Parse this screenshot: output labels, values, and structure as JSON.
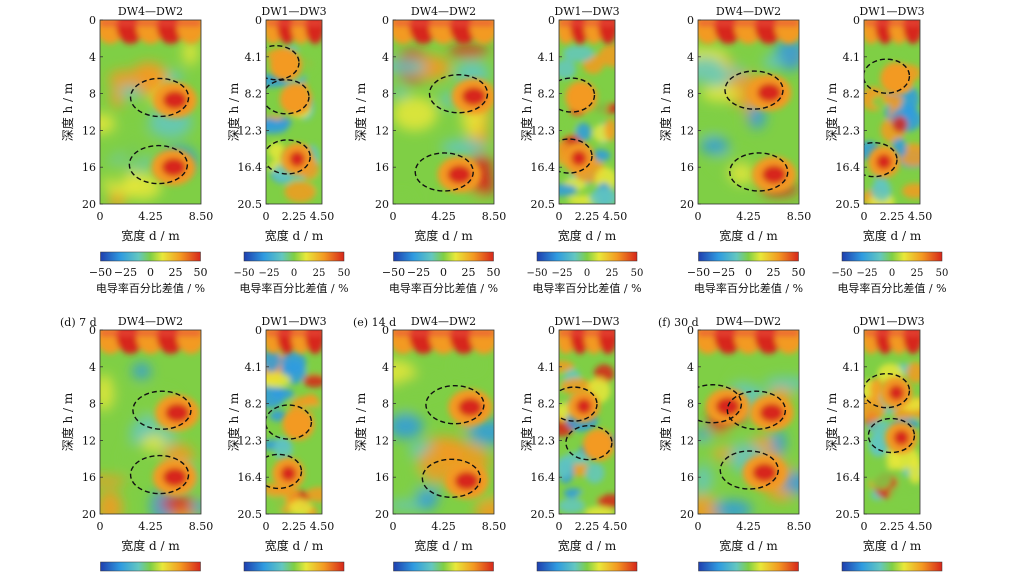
{
  "chart_data": {
    "type": "heatmap",
    "columns": [
      {
        "title": "DW4—DW2",
        "yticks": [
          "0",
          "4",
          "8",
          "12",
          "16",
          "20"
        ],
        "ylim": [
          0,
          20
        ],
        "xticks": [
          "0",
          "4.25",
          "8.50"
        ],
        "xlim": [
          0,
          8.5
        ],
        "cbar_ticks": [
          "−50",
          "−25",
          "0",
          "25",
          "50"
        ]
      },
      {
        "title": "DW1—DW3",
        "yticks": [
          "0",
          "4.1",
          "8.2",
          "12.3",
          "16.4",
          "20.5"
        ],
        "ylim": [
          0,
          20.5
        ],
        "xticks": [
          "0",
          "2.25",
          "4.50"
        ],
        "xlim": [
          0,
          4.5
        ],
        "cbar_ticks": [
          "−50",
          "−25",
          "0",
          "25",
          "50"
        ]
      }
    ],
    "ylabel": "深度 h / m",
    "xlabel": "宽度 d / m",
    "colorbar_label": "电导率百分比差值 / %",
    "colorbar_range": [
      -50,
      50
    ],
    "panels": [
      {
        "label": "",
        "anomalies": {
          "DW4—DW2": [
            {
              "x": 6.3,
              "y": 8.7,
              "value": 45
            },
            {
              "x": 6.2,
              "y": 16.0,
              "value": 38
            }
          ],
          "DW1—DW3": [
            {
              "x": 1.6,
              "y": 5.0,
              "value": 30
            },
            {
              "x": 2.4,
              "y": 8.8,
              "value": 25
            },
            {
              "x": 2.5,
              "y": 15.5,
              "value": 32
            }
          ]
        }
      },
      {
        "label": "",
        "anomalies": {
          "DW4—DW2": [
            {
              "x": 6.8,
              "y": 8.3,
              "value": 42
            },
            {
              "x": 5.6,
              "y": 16.8,
              "value": 48
            }
          ],
          "DW1—DW3": [
            {
              "x": 1.8,
              "y": 8.6,
              "value": 30
            },
            {
              "x": 1.6,
              "y": 15.4,
              "value": 35
            }
          ]
        }
      },
      {
        "label": "",
        "anomalies": {
          "DW4—DW2": [
            {
              "x": 6.0,
              "y": 7.9,
              "value": 38
            },
            {
              "x": 6.4,
              "y": 16.8,
              "value": 46
            }
          ],
          "DW1—DW3": [
            {
              "x": 2.6,
              "y": 6.5,
              "value": 30
            },
            {
              "x": 1.6,
              "y": 15.8,
              "value": 36
            }
          ]
        }
      },
      {
        "label": "(d) 7 d",
        "anomalies": {
          "DW4—DW2": [
            {
              "x": 6.5,
              "y": 9.0,
              "value": 46
            },
            {
              "x": 6.3,
              "y": 16.0,
              "value": 44
            }
          ],
          "DW1—DW3": [
            {
              "x": 2.6,
              "y": 10.5,
              "value": 28
            },
            {
              "x": 1.8,
              "y": 16.0,
              "value": 36
            }
          ]
        }
      },
      {
        "label": "(e) 14 d",
        "anomalies": {
          "DW4—DW2": [
            {
              "x": 6.5,
              "y": 8.4,
              "value": 48
            },
            {
              "x": 6.2,
              "y": 16.4,
              "value": 46
            }
          ],
          "DW1—DW3": [
            {
              "x": 2.0,
              "y": 8.5,
              "value": 40
            },
            {
              "x": 3.2,
              "y": 12.8,
              "value": 30
            }
          ]
        }
      },
      {
        "label": "(f) 30 d",
        "anomalies": {
          "DW4—DW2": [
            {
              "x": 2.5,
              "y": 8.3,
              "value": 44
            },
            {
              "x": 6.2,
              "y": 9.0,
              "value": 42
            },
            {
              "x": 5.6,
              "y": 15.5,
              "value": 48
            }
          ],
          "DW1—DW3": [
            {
              "x": 2.6,
              "y": 7.0,
              "value": 36
            },
            {
              "x": 3.0,
              "y": 12.0,
              "value": 44
            }
          ]
        }
      }
    ]
  }
}
